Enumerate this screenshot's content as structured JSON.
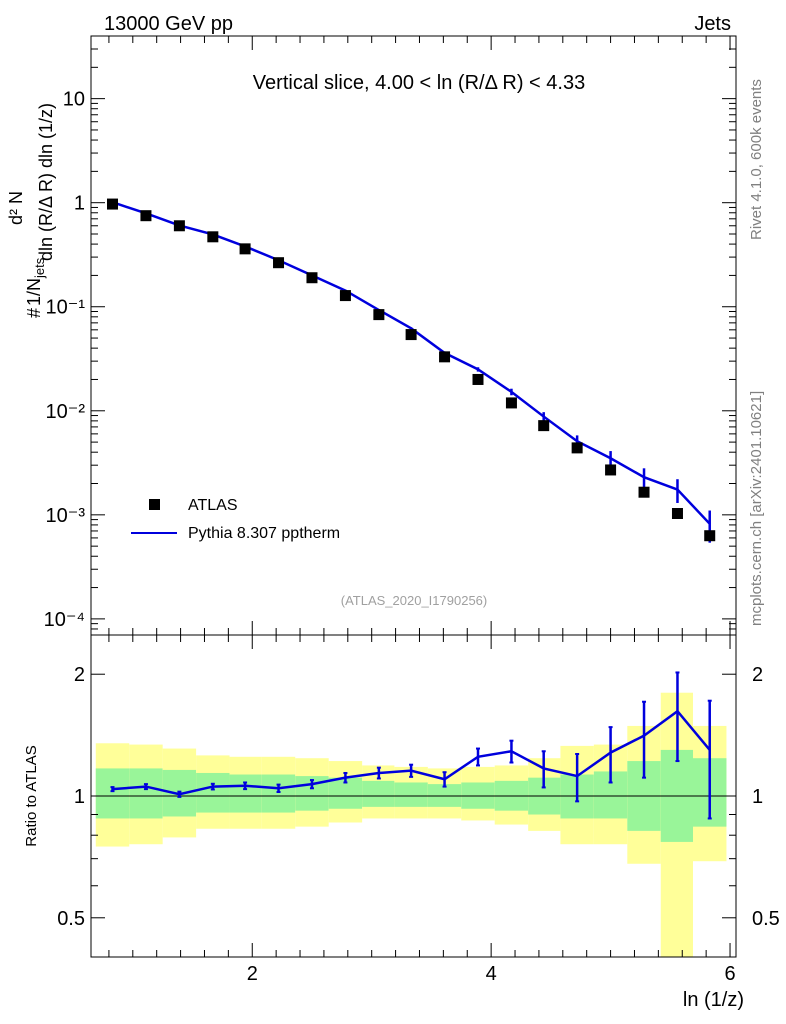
{
  "header": {
    "left": "13000 GeV pp",
    "right": "Jets"
  },
  "side_labels": {
    "rivet": "Rivet 4.1.0,  600k events",
    "mcplots": "mcplots.cern.ch [arXiv:2401.10621]"
  },
  "chart_data": {
    "type": "line",
    "title": "Vertical slice, 4.00 < ln (R/Δ R) < 4.33",
    "watermark": "(ATLAS_2020_I1790256)",
    "xlabel": "ln (1/z)",
    "ylabel_top": "1/N_jets d²N_emissions / dln(R/ΔR) dln(1/z)",
    "ylabel_bottom": "Ratio to ATLAS",
    "xlim": [
      0.65,
      6.05
    ],
    "x_ticks": [
      "2",
      "4",
      "6"
    ],
    "top_panel": {
      "yscale": "log",
      "ylim": [
        7e-05,
        40
      ],
      "y_tick_labels": [
        "10",
        "1",
        "10⁻¹",
        "10⁻²",
        "10⁻³",
        "10⁻⁴"
      ],
      "legend": [
        "ATLAS",
        "Pythia 8.307 pptherm"
      ],
      "legend_position": "bottom-left",
      "series": [
        {
          "name": "ATLAS",
          "style": "markers",
          "x": [
            0.83,
            1.11,
            1.39,
            1.67,
            1.94,
            2.22,
            2.5,
            2.78,
            3.06,
            3.33,
            3.61,
            3.89,
            4.17,
            4.44,
            4.72,
            5.0,
            5.28,
            5.56,
            5.83
          ],
          "y": [
            0.97,
            0.75,
            0.6,
            0.47,
            0.36,
            0.265,
            0.19,
            0.128,
            0.084,
            0.054,
            0.033,
            0.02,
            0.0119,
            0.0072,
            0.0044,
            0.0027,
            0.00165,
            0.00103,
            0.00063
          ]
        },
        {
          "name": "Pythia 8.307 pptherm",
          "style": "line",
          "color": "#0000dd",
          "x": [
            0.83,
            1.11,
            1.39,
            1.67,
            1.94,
            2.22,
            2.5,
            2.78,
            3.06,
            3.33,
            3.61,
            3.89,
            4.17,
            4.44,
            4.72,
            5.0,
            5.28,
            5.56,
            5.83
          ],
          "y": [
            1.01,
            0.79,
            0.605,
            0.495,
            0.38,
            0.28,
            0.2,
            0.143,
            0.093,
            0.062,
            0.036,
            0.025,
            0.0152,
            0.0088,
            0.0051,
            0.0035,
            0.0023,
            0.00175,
            0.00082
          ],
          "err_lo": [
            0.012,
            0.01,
            0.008,
            0.006,
            0.005,
            0.004,
            0.003,
            0.0025,
            0.0018,
            0.0014,
            0.0012,
            0.0012,
            0.0011,
            0.0009,
            0.0007,
            0.0006,
            0.0005,
            0.00045,
            0.00028
          ],
          "err_hi": [
            0.012,
            0.01,
            0.008,
            0.006,
            0.005,
            0.004,
            0.003,
            0.0025,
            0.0018,
            0.0014,
            0.0012,
            0.0012,
            0.0011,
            0.0009,
            0.0007,
            0.0006,
            0.0005,
            0.00045,
            0.00028
          ]
        }
      ]
    },
    "ratio_panel": {
      "yscale": "log",
      "ylim": [
        0.4,
        2.5
      ],
      "y_ticks": [
        0.5,
        1,
        2
      ],
      "y_tick_labels": [
        "0.5",
        "1",
        "2"
      ],
      "reference_line": 1,
      "bin_edges": [
        0.69,
        0.97,
        1.25,
        1.53,
        1.81,
        2.08,
        2.36,
        2.64,
        2.92,
        3.19,
        3.47,
        3.75,
        4.03,
        4.31,
        4.58,
        4.86,
        5.14,
        5.42,
        5.69,
        5.97
      ],
      "band_inner": {
        "color": "#99f599",
        "lo": [
          0.88,
          0.88,
          0.89,
          0.91,
          0.91,
          0.91,
          0.92,
          0.93,
          0.94,
          0.94,
          0.94,
          0.93,
          0.92,
          0.9,
          0.88,
          0.88,
          0.82,
          0.77,
          0.84
        ],
        "hi": [
          1.17,
          1.17,
          1.16,
          1.14,
          1.13,
          1.13,
          1.12,
          1.11,
          1.09,
          1.08,
          1.07,
          1.08,
          1.09,
          1.11,
          1.13,
          1.15,
          1.22,
          1.3,
          1.24
        ]
      },
      "band_outer": {
        "color": "#ffff99",
        "lo": [
          0.75,
          0.76,
          0.79,
          0.83,
          0.83,
          0.83,
          0.84,
          0.86,
          0.88,
          0.88,
          0.88,
          0.87,
          0.85,
          0.82,
          0.76,
          0.76,
          0.68,
          0.38,
          0.69
        ],
        "hi": [
          1.35,
          1.34,
          1.31,
          1.26,
          1.25,
          1.25,
          1.24,
          1.22,
          1.19,
          1.18,
          1.17,
          1.18,
          1.19,
          1.24,
          1.33,
          1.34,
          1.49,
          1.8,
          1.49
        ]
      },
      "series": {
        "name": "Pythia 8.307 pptherm",
        "color": "#0000dd",
        "x": [
          0.83,
          1.11,
          1.39,
          1.67,
          1.94,
          2.22,
          2.5,
          2.78,
          3.06,
          3.33,
          3.61,
          3.89,
          4.17,
          4.44,
          4.72,
          5.0,
          5.28,
          5.56,
          5.83
        ],
        "y": [
          1.04,
          1.055,
          1.01,
          1.055,
          1.06,
          1.045,
          1.07,
          1.11,
          1.14,
          1.155,
          1.1,
          1.25,
          1.29,
          1.17,
          1.12,
          1.28,
          1.41,
          1.62,
          1.3
        ],
        "err_lo": [
          0.012,
          0.015,
          0.015,
          0.017,
          0.02,
          0.022,
          0.025,
          0.03,
          0.035,
          0.04,
          0.045,
          0.06,
          0.08,
          0.12,
          0.15,
          0.2,
          0.3,
          0.4,
          0.42
        ],
        "err_hi": [
          0.012,
          0.015,
          0.015,
          0.017,
          0.02,
          0.022,
          0.025,
          0.03,
          0.035,
          0.04,
          0.045,
          0.06,
          0.08,
          0.12,
          0.15,
          0.2,
          0.3,
          0.4,
          0.42
        ]
      }
    }
  }
}
